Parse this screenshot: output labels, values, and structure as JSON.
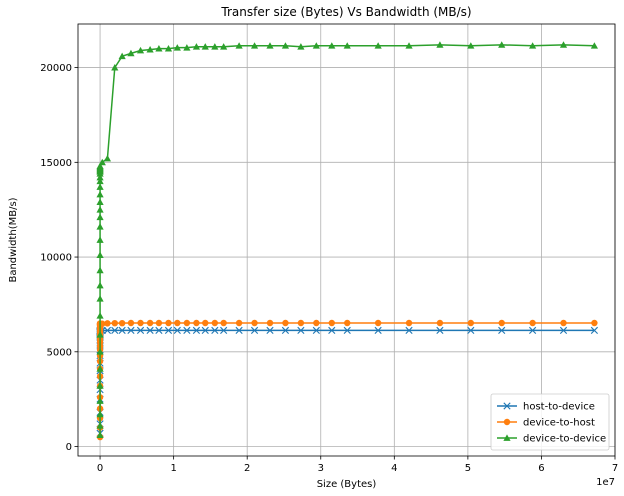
{
  "chart_data": {
    "type": "line",
    "title": "Transfer size (Bytes) Vs Bandwidth (MB/s)",
    "xlabel": "Size (Bytes)",
    "ylabel": "Bandwidth(MB/s)",
    "x_offset_label": "1e7",
    "xlim": [
      -0.3,
      7.0
    ],
    "ylim": [
      -500,
      22300
    ],
    "x_scale_factor": 10000000,
    "xticks": [
      0,
      1,
      2,
      3,
      4,
      5,
      6,
      7
    ],
    "xtick_labels": [
      "0",
      "1",
      "2",
      "3",
      "4",
      "5",
      "6",
      "7"
    ],
    "yticks": [
      0,
      5000,
      10000,
      15000,
      20000
    ],
    "ytick_labels": [
      "0",
      "5000",
      "10000",
      "15000",
      "20000"
    ],
    "grid": true,
    "legend_position": "lower-right",
    "series": [
      {
        "name": "host-to-device",
        "color": "#1f77b4",
        "marker": "x",
        "x": [
          0.0,
          0.0,
          0.0,
          0.0,
          0.0,
          0.0,
          0.0,
          0.0,
          0.0,
          0.0,
          0.0,
          0.0,
          0.0,
          0.0,
          0.0,
          0.0,
          0.0,
          0.0,
          0.0,
          0.0,
          0.0,
          0.0,
          0.0,
          0.0,
          0.0,
          0.0,
          0.0,
          0.0,
          0.0,
          0.0,
          0.03,
          0.1,
          0.2,
          0.3,
          0.42,
          0.55,
          0.68,
          0.8,
          0.93,
          1.05,
          1.18,
          1.31,
          1.43,
          1.56,
          1.68,
          1.89,
          2.1,
          2.31,
          2.52,
          2.73,
          2.94,
          3.15,
          3.36,
          3.78,
          4.2,
          4.62,
          5.04,
          5.46,
          5.88,
          6.3,
          6.72
        ],
        "y": [
          700,
          1200,
          1800,
          2500,
          3000,
          3500,
          4000,
          4400,
          4800,
          5100,
          5300,
          5500,
          5650,
          5750,
          5850,
          5900,
          5950,
          6000,
          6020,
          6040,
          6060,
          6080,
          6090,
          6100,
          6100,
          6110,
          6110,
          6120,
          6120,
          6120,
          6120,
          6130,
          6130,
          6130,
          6130,
          6130,
          6130,
          6130,
          6130,
          6130,
          6130,
          6130,
          6130,
          6130,
          6130,
          6130,
          6130,
          6130,
          6130,
          6130,
          6130,
          6130,
          6130,
          6130,
          6130,
          6130,
          6130,
          6130,
          6130,
          6130,
          6130
        ]
      },
      {
        "name": "device-to-host",
        "color": "#ff7f0e",
        "marker": "o",
        "x": [
          0.0,
          0.0,
          0.0,
          0.0,
          0.0,
          0.0,
          0.0,
          0.0,
          0.0,
          0.0,
          0.0,
          0.0,
          0.0,
          0.0,
          0.0,
          0.0,
          0.0,
          0.0,
          0.0,
          0.0,
          0.0,
          0.0,
          0.0,
          0.0,
          0.0,
          0.0,
          0.0,
          0.0,
          0.0,
          0.0,
          0.03,
          0.1,
          0.2,
          0.3,
          0.42,
          0.55,
          0.68,
          0.8,
          0.93,
          1.05,
          1.18,
          1.31,
          1.43,
          1.56,
          1.68,
          1.89,
          2.1,
          2.31,
          2.52,
          2.73,
          2.94,
          3.15,
          3.36,
          3.78,
          4.2,
          4.62,
          5.04,
          5.46,
          5.88,
          6.3,
          6.72
        ],
        "y": [
          500,
          1000,
          1500,
          2000,
          2600,
          3200,
          3700,
          4100,
          4500,
          4800,
          5100,
          5300,
          5500,
          5650,
          5800,
          5900,
          6000,
          6100,
          6200,
          6280,
          6340,
          6380,
          6410,
          6430,
          6450,
          6460,
          6470,
          6480,
          6490,
          6490,
          6480,
          6500,
          6510,
          6510,
          6520,
          6520,
          6520,
          6520,
          6520,
          6520,
          6520,
          6520,
          6520,
          6520,
          6520,
          6520,
          6520,
          6520,
          6520,
          6520,
          6520,
          6520,
          6520,
          6520,
          6520,
          6520,
          6520,
          6520,
          6520,
          6520,
          6520
        ]
      },
      {
        "name": "device-to-device",
        "color": "#2ca02c",
        "marker": "^",
        "x": [
          0.0,
          0.0,
          0.0,
          0.0,
          0.0,
          0.0,
          0.0,
          0.0,
          0.0,
          0.0,
          0.0,
          0.0,
          0.0,
          0.0,
          0.0,
          0.0,
          0.0,
          0.0,
          0.0,
          0.0,
          0.0,
          0.0,
          0.0,
          0.0,
          0.0,
          0.0,
          0.0,
          0.0,
          0.0,
          0.0,
          0.03,
          0.1,
          0.2,
          0.3,
          0.42,
          0.55,
          0.68,
          0.8,
          0.93,
          1.05,
          1.18,
          1.31,
          1.43,
          1.56,
          1.68,
          1.89,
          2.1,
          2.31,
          2.52,
          2.73,
          2.94,
          3.15,
          3.36,
          3.78,
          4.2,
          4.62,
          5.04,
          5.46,
          5.88,
          6.3,
          6.72
        ],
        "y": [
          600,
          1100,
          1700,
          2400,
          3200,
          4100,
          5000,
          5900,
          6900,
          7800,
          8500,
          9300,
          10100,
          10900,
          11600,
          12100,
          12500,
          12900,
          13300,
          13700,
          14000,
          14200,
          14400,
          14500,
          14550,
          14600,
          14650,
          14700,
          14750,
          14800,
          15000,
          15200,
          20000,
          20600,
          20750,
          20900,
          20950,
          21000,
          21000,
          21050,
          21050,
          21100,
          21100,
          21100,
          21100,
          21150,
          21150,
          21150,
          21150,
          21100,
          21150,
          21150,
          21150,
          21150,
          21150,
          21200,
          21150,
          21200,
          21150,
          21200,
          21150
        ]
      }
    ]
  }
}
